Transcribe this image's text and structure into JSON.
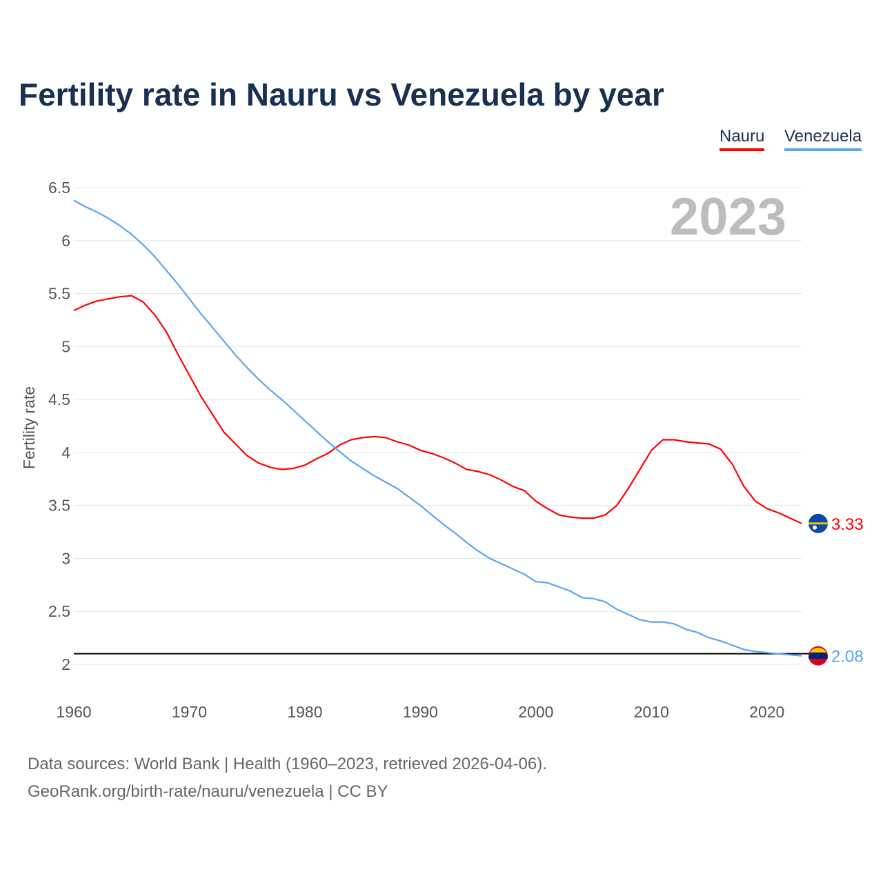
{
  "chart_data": {
    "type": "line",
    "title": "Fertility rate in Nauru vs Venezuela by year",
    "xlabel": "",
    "ylabel": "Fertility rate",
    "xlim": [
      1960,
      2023
    ],
    "ylim": [
      2,
      6.5
    ],
    "x_ticks": [
      "1960",
      "1970",
      "1980",
      "1990",
      "2000",
      "2010",
      "2020"
    ],
    "y_ticks": [
      "2",
      "2.5",
      "3",
      "3.5",
      "4",
      "4.5",
      "5",
      "5.5",
      "6",
      "6.5"
    ],
    "grid": true,
    "legend_position": "top-right",
    "year_label": "2023",
    "reference_line": 2.1,
    "x": [
      1960,
      1961,
      1962,
      1963,
      1964,
      1965,
      1966,
      1967,
      1968,
      1969,
      1970,
      1971,
      1972,
      1973,
      1974,
      1975,
      1976,
      1977,
      1978,
      1979,
      1980,
      1981,
      1982,
      1983,
      1984,
      1985,
      1986,
      1987,
      1988,
      1989,
      1990,
      1991,
      1992,
      1993,
      1994,
      1995,
      1996,
      1997,
      1998,
      1999,
      2000,
      2001,
      2002,
      2003,
      2004,
      2005,
      2006,
      2007,
      2008,
      2009,
      2010,
      2011,
      2012,
      2013,
      2014,
      2015,
      2016,
      2017,
      2018,
      2019,
      2020,
      2021,
      2022,
      2023
    ],
    "series": [
      {
        "name": "Nauru",
        "color": "#ff0000",
        "end_label": "3.33",
        "values": [
          5.34,
          5.39,
          5.43,
          5.45,
          5.47,
          5.48,
          5.42,
          5.3,
          5.14,
          4.93,
          4.73,
          4.53,
          4.36,
          4.19,
          4.08,
          3.97,
          3.9,
          3.86,
          3.84,
          3.85,
          3.88,
          3.94,
          3.99,
          4.07,
          4.12,
          4.14,
          4.15,
          4.14,
          4.1,
          4.07,
          4.02,
          3.99,
          3.95,
          3.9,
          3.84,
          3.82,
          3.79,
          3.74,
          3.68,
          3.64,
          3.54,
          3.47,
          3.41,
          3.39,
          3.38,
          3.38,
          3.41,
          3.5,
          3.66,
          3.84,
          4.02,
          4.12,
          4.12,
          4.1,
          4.09,
          4.08,
          4.03,
          3.89,
          3.68,
          3.54,
          3.47,
          3.43,
          3.38,
          3.33
        ]
      },
      {
        "name": "Venezuela",
        "color": "#5aa5ef",
        "end_label": "2.08",
        "values": [
          6.38,
          6.32,
          6.27,
          6.21,
          6.14,
          6.06,
          5.96,
          5.85,
          5.72,
          5.59,
          5.45,
          5.31,
          5.18,
          5.05,
          4.92,
          4.8,
          4.69,
          4.59,
          4.5,
          4.4,
          4.3,
          4.2,
          4.1,
          4.01,
          3.92,
          3.85,
          3.78,
          3.72,
          3.66,
          3.58,
          3.5,
          3.41,
          3.32,
          3.24,
          3.15,
          3.07,
          3.0,
          2.95,
          2.9,
          2.85,
          2.78,
          2.77,
          2.73,
          2.69,
          2.63,
          2.62,
          2.59,
          2.52,
          2.47,
          2.42,
          2.4,
          2.4,
          2.38,
          2.33,
          2.3,
          2.25,
          2.22,
          2.18,
          2.14,
          2.12,
          2.11,
          2.1,
          2.09,
          2.08
        ]
      }
    ]
  },
  "footer": {
    "line1": "Data sources: World Bank | Health (1960–2023, retrieved 2026-04-06).",
    "line2": "GeoRank.org/birth-rate/nauru/venezuela | CC BY"
  }
}
